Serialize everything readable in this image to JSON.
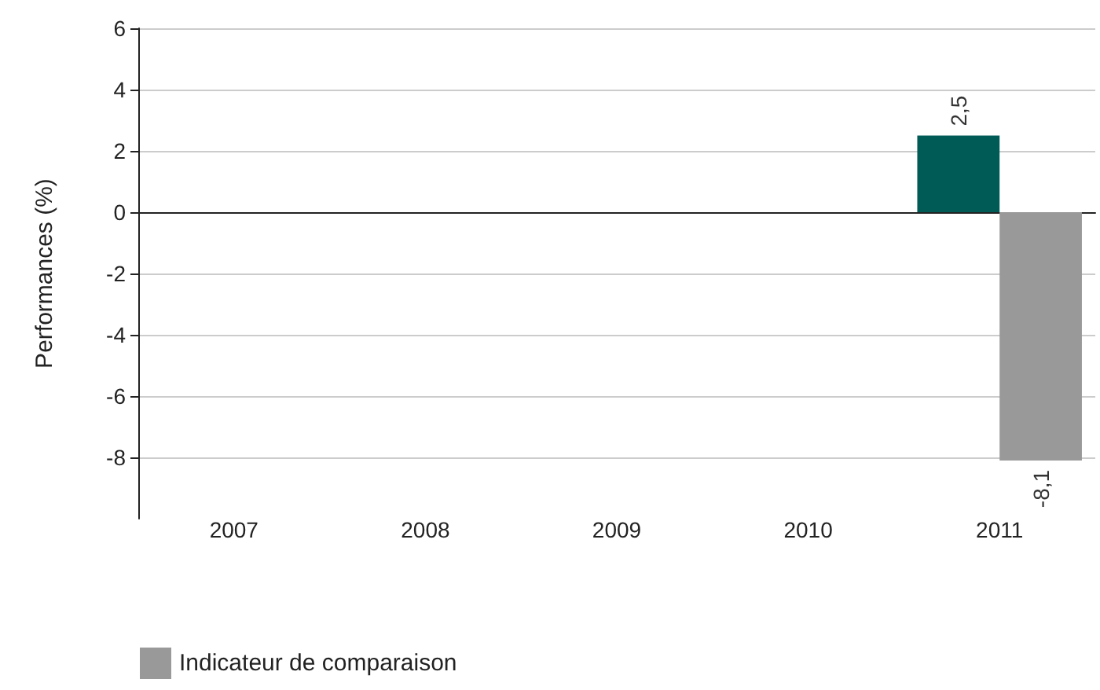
{
  "chart_data": {
    "type": "bar",
    "ylabel": "Performances (%)",
    "categories": [
      "2007",
      "2008",
      "2009",
      "2010",
      "2011"
    ],
    "series": [
      {
        "color": "#005a55",
        "values": [
          null,
          null,
          null,
          null,
          2.5
        ],
        "value_labels": [
          null,
          null,
          null,
          null,
          "2,5"
        ]
      },
      {
        "name": "Indicateur de comparaison",
        "color": "#999999",
        "values": [
          null,
          null,
          null,
          null,
          -8.1
        ],
        "value_labels": [
          null,
          null,
          null,
          null,
          "-8,1"
        ]
      }
    ],
    "ylim": [
      -10,
      6
    ],
    "yticks": [
      -8,
      -6,
      -4,
      -2,
      0,
      2,
      4,
      6
    ],
    "grid": "y",
    "legend": "bottom left"
  }
}
